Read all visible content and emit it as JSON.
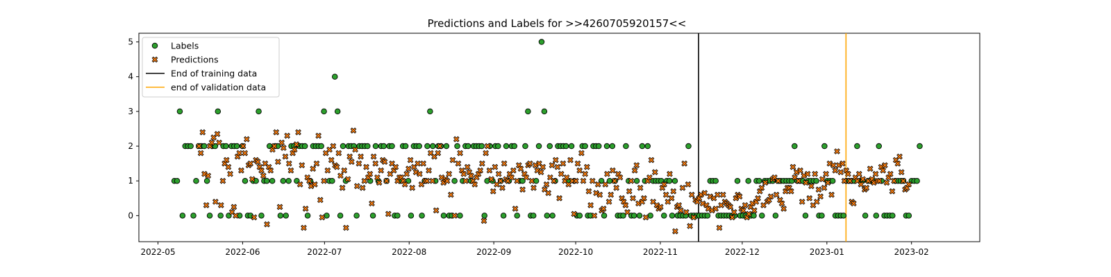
{
  "chart_data": {
    "type": "scatter",
    "title": "Predictions and Labels for >>4260705920157<<",
    "xlabel": "",
    "ylabel": "",
    "xlim": [
      "2022-04-24",
      "2023-02-26"
    ],
    "ylim": [
      -0.75,
      5.25
    ],
    "grid": false,
    "legend_position": "top-left",
    "x_ticks": [
      "2022-05",
      "2022-06",
      "2022-07",
      "2022-08",
      "2022-09",
      "2022-10",
      "2022-11",
      "2022-12",
      "2023-01",
      "2023-02"
    ],
    "y_ticks": [
      0,
      1,
      2,
      3,
      4,
      5
    ],
    "colors": {
      "labels": "#2ca02c",
      "predictions": "#ff7f0e",
      "end_training": "#000000",
      "end_validation": "#ffa500"
    },
    "vertical_lines": [
      {
        "name": "End of training data",
        "x": "2022-11-15",
        "color": "#000000"
      },
      {
        "name": "end of validation data",
        "x": "2023-01-08",
        "color": "#ffa500"
      }
    ],
    "series": [
      {
        "name": "Labels",
        "marker": "circle",
        "start": "2022-05-07",
        "end": "2023-02-04",
        "values": [
          1,
          1,
          3,
          0,
          2,
          2,
          2,
          0,
          1,
          2,
          2,
          2,
          1,
          0,
          2,
          2,
          3,
          0,
          2,
          2,
          0,
          2,
          2,
          2,
          0,
          2,
          1,
          0,
          0,
          1,
          1,
          3,
          0,
          1,
          1,
          2,
          1,
          2,
          2,
          0,
          1,
          0,
          1,
          2,
          2,
          1,
          2,
          2,
          2,
          0,
          1,
          2,
          2,
          2,
          2,
          3,
          0,
          1,
          1,
          4,
          3,
          0,
          2,
          1,
          2,
          2,
          2,
          0,
          2,
          2,
          2,
          2,
          1,
          0,
          2,
          1,
          2,
          2,
          1,
          2,
          2,
          0,
          0,
          1,
          2,
          2,
          1,
          0,
          2,
          2,
          2,
          0,
          1,
          2,
          3,
          2,
          1,
          2,
          2,
          0,
          2,
          0,
          0,
          1,
          2,
          0,
          1,
          2,
          2,
          1,
          2,
          2,
          2,
          2,
          0,
          1,
          2,
          1,
          2,
          2,
          1,
          0,
          2,
          1,
          2,
          2,
          0,
          1,
          1,
          2,
          3,
          0,
          0,
          1,
          2,
          5,
          3,
          0,
          2,
          0,
          1,
          2,
          2,
          2,
          2,
          1,
          2,
          1,
          0,
          0,
          2,
          2,
          0,
          0,
          2,
          2,
          2,
          1,
          0,
          2,
          1,
          2,
          1,
          0,
          0,
          0,
          2,
          1,
          0,
          0,
          1,
          0,
          2,
          1,
          2,
          0,
          1,
          1,
          1,
          1,
          0,
          1,
          1,
          0,
          1,
          0,
          0,
          0,
          0,
          2,
          0,
          0,
          0,
          0,
          0,
          0,
          0,
          1,
          1,
          1,
          0,
          0,
          0,
          0,
          0,
          0,
          0,
          1,
          0,
          0,
          0,
          1,
          0,
          0,
          1,
          1,
          0,
          1,
          1,
          1,
          1,
          0,
          1,
          1,
          1,
          1,
          1,
          1,
          2,
          1,
          1,
          1,
          0,
          1,
          1,
          1,
          1,
          0,
          0,
          2,
          1,
          1,
          1,
          0,
          0,
          0,
          0,
          1,
          1,
          1,
          1,
          2,
          1,
          1,
          0,
          1,
          1,
          1,
          0,
          2,
          1,
          0,
          0,
          0,
          0,
          1,
          1,
          1,
          1,
          0,
          0,
          1,
          1,
          1,
          2
        ]
      },
      {
        "name": "Predictions",
        "marker": "x",
        "start": "2022-05-16",
        "end": "2023-01-31",
        "values": [
          2,
          1.8,
          2.4,
          1.2,
          0.3,
          1.15,
          2.0,
          2.1,
          2.25,
          0.4,
          2.35,
          2.1,
          0.3,
          1.0,
          1.5,
          1.6,
          1.4,
          1.2,
          0.1,
          0.25,
          0,
          1.7,
          1.8,
          1.3,
          2.0,
          1.8,
          2.2,
          1.45,
          1.5,
          1.05,
          -0.05,
          1.6,
          1.55,
          1.4,
          1.3,
          1.15,
          1.5,
          -0.25,
          1.4,
          1.3,
          1.9,
          2.0,
          2.4,
          1.55,
          0.25,
          2.1,
          1.95,
          1.7,
          2.3,
          1.5,
          1.3,
          1.8,
          1.9,
          2.05,
          2.4,
          0.9,
          1.45,
          -0.35,
          0.2,
          1.1,
          1.0,
          0.85,
          1.35,
          0.9,
          1.5,
          2.3,
          0.45,
          -0.05,
          1.0,
          1.8,
          1.3,
          1.9,
          1.6,
          2.0,
          1.45,
          1.4,
          1.8,
          1.15,
          0.8,
          1.3,
          -0.35,
          1.05,
          1.7,
          1.55,
          2.45,
          1.9,
          0.85,
          1.5,
          1.7,
          0.8,
          1.0,
          1.4,
          1.1,
          1.2,
          0.35,
          1.7,
          1.5,
          1.1,
          0.95,
          1.3,
          1.6,
          1.55,
          1.0,
          0.05,
          1.2,
          1.5,
          1.3,
          1.4,
          1.0,
          1.1,
          1.1,
          1.0,
          0.9,
          1.2,
          1.35,
          1.6,
          0.8,
          1.4,
          1.25,
          1.5,
          1.2,
          0.9,
          1.5,
          1.0,
          1.0,
          1.3,
          1.8,
          1.0,
          1.7,
          0.15,
          1.8,
          2.0,
          1.1,
          0.95,
          1.05,
          1.0,
          1.2,
          0.6,
          1.6,
          0.0,
          2.2,
          1.5,
          1.8,
          1.3,
          1.2,
          1.0,
          1.4,
          1.25,
          1.15,
          1.0,
          0.9,
          1.1,
          1.2,
          1.3,
          1.5,
          -0.15,
          1.8,
          2.0,
          1.3,
          1.05,
          0.7,
          1.4,
          0.9,
          1.2,
          1.0,
          0.8,
          1.5,
          1.05,
          1.0,
          1.2,
          1.1,
          1.3,
          0.2,
          1.0,
          1.45,
          1.35,
          0.75,
          1.2,
          1.1,
          1.45,
          1.5,
          1.0,
          0.8,
          1.45,
          1.3,
          1.5,
          1.25,
          1.4,
          0.75,
          0.9,
          0.65,
          1.1,
          1.45,
          1.0,
          1.6,
          1.4,
          0.5,
          1.2,
          1.5,
          1.0,
          1.1,
          0.9,
          1.6,
          1.0,
          0.05,
          1.0,
          1.5,
          1.3,
          1.8,
          1.0,
          1.2,
          1.4,
          0.7,
          0.3,
          1.0,
          0.0,
          0.65,
          0.9,
          0.6,
          0.15,
          0.2,
          0.9,
          1.2,
          0.4,
          0.6,
          1.3,
          1.0,
          0.8,
          1.2,
          1.1,
          0.5,
          0.4,
          0.3,
          0.1,
          0.7,
          1.0,
          0.5,
          1.3,
          1.45,
          0.35,
          0.8,
          0.4,
          0.5,
          -0.05,
          1.0,
          1.1,
          1.6,
          0.4,
          1.25,
          0.3,
          0.2,
          0.25,
          0.8,
          0.9,
          0.6,
          0.4,
          1.2,
          0.5,
          0.7,
          -0.45,
          0.25,
          0.3,
          0.15,
          0.8,
          1.5,
          0.1,
          0.9,
          -0.3,
          0.6,
          -0.05,
          0.45,
          0.4,
          0.5,
          0.6,
          0.35,
          0.65,
          0.3,
          0.2,
          0.55,
          0.15,
          0.5,
          0.2,
          0.6,
          -0.35,
          0.3,
          0.6,
          0.4,
          0.35,
          0.3,
          0.25,
          -0.05,
          0.1,
          0.5,
          0.6,
          0.55,
          0.2,
          0.15,
          0.3,
          -0.05,
          0.05,
          0.25,
          0.35,
          0.15,
          0.4,
          0.5,
          0.7,
          0.8,
          0.3,
          0.95,
          0.4,
          0.45,
          0.55,
          1.05,
          1.1,
          0.6,
          1.0,
          0.45,
          0.35,
          0.2,
          0.7,
          0.8,
          0.8,
          0.7,
          1.4,
          1.1,
          1.25,
          1.0,
          1.3,
          0.4,
          1.15,
          0.95,
          1.2,
          0.5,
          0.85,
          0.3,
          1.2,
          0.4,
          0.75,
          0.55,
          1.05,
          0.8,
          1.2,
          0.95,
          1.5,
          0.6,
          1.45,
          1.3,
          1.85,
          1.45,
          1.25,
          1.5,
          1.0,
          1.3,
          1.2,
          1.0,
          0.4,
          0.35,
          1.1,
          1.0,
          1.2,
          0.9,
          1.05,
          0.75,
          0.8,
          1.0,
          1.35,
          1.05,
          0.95,
          1.2,
          1.0,
          1.0,
          1.4,
          1.3,
          1.45,
          0.95,
          1.1,
          1.2,
          0.7,
          1.0,
          1.6,
          1.5,
          1.7,
          1.25,
          1.0,
          0.75,
          0.8,
          0.9
        ]
      }
    ]
  }
}
